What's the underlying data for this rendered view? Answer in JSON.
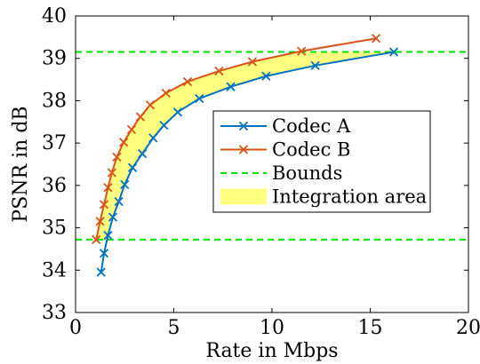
{
  "chart_data": {
    "type": "line",
    "xlabel": "Rate in Mbps",
    "ylabel": "PSNR in dB",
    "xlim": [
      0,
      20
    ],
    "ylim": [
      33,
      40
    ],
    "xticks": [
      0,
      5,
      10,
      15,
      20
    ],
    "yticks": [
      33,
      34,
      35,
      36,
      37,
      38,
      39,
      40
    ],
    "grid": false,
    "legend_position": "right",
    "series": [
      {
        "name": "Codec A",
        "marker": "x",
        "color": "#0072BD",
        "x": [
          1.3,
          1.45,
          1.65,
          1.9,
          2.2,
          2.5,
          2.9,
          3.4,
          3.95,
          4.5,
          5.2,
          6.3,
          7.9,
          9.7,
          12.2,
          16.2
        ],
        "y": [
          33.95,
          34.4,
          34.82,
          35.25,
          35.62,
          36.02,
          36.42,
          36.75,
          37.12,
          37.42,
          37.73,
          38.05,
          38.33,
          38.58,
          38.83,
          39.15
        ]
      },
      {
        "name": "Codec B",
        "marker": "x",
        "color": "#D95319",
        "x": [
          1.05,
          1.25,
          1.45,
          1.65,
          1.85,
          2.1,
          2.45,
          2.85,
          3.3,
          3.8,
          4.6,
          5.7,
          7.3,
          9.0,
          11.5,
          15.3
        ],
        "y": [
          34.72,
          35.15,
          35.55,
          35.95,
          36.3,
          36.67,
          37.02,
          37.32,
          37.62,
          37.9,
          38.18,
          38.45,
          38.7,
          38.92,
          39.17,
          39.47
        ]
      }
    ],
    "bounds": {
      "name": "Bounds",
      "color": "#00E000",
      "values": [
        34.72,
        39.15
      ]
    },
    "integration_area": {
      "name": "Integration area",
      "color": "#FFFF80"
    }
  }
}
